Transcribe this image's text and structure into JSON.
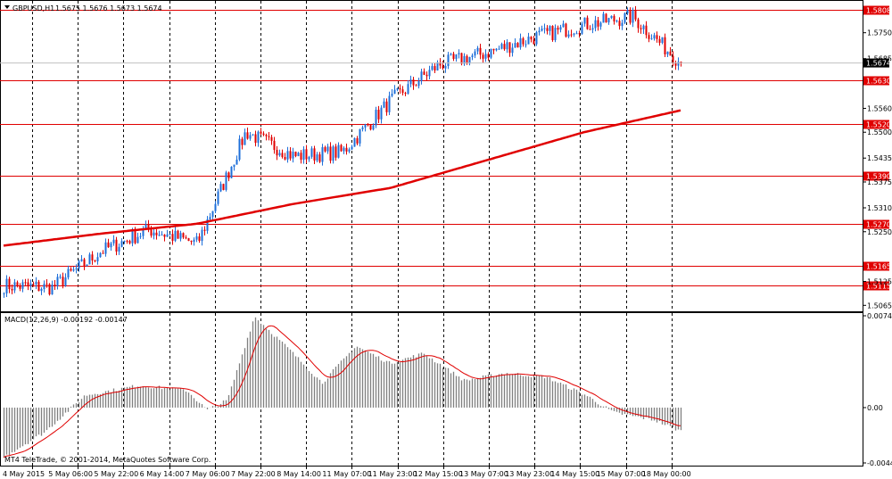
{
  "header": {
    "symbol": "GBPUSD,H1",
    "ohlc": "1.5675 1.5676 1.5673 1.5674"
  },
  "macd_header": {
    "label": "MACD(12,26,9) -0.00192 -0.00147"
  },
  "copyright": "MT4 TeleTrade, © 2001-2014, MetaQuotes Software Corp.",
  "colors": {
    "up_candle": "#1e6fd9",
    "down_candle": "#e00000",
    "level_line": "#e00000",
    "ma_line": "#e00000",
    "macd_hist": "#808080",
    "signal_line": "#e00000",
    "grid": "#000000"
  },
  "price_axis": {
    "ticks": [
      "1.5750",
      "1.5685",
      "1.5560",
      "1.5500",
      "1.5435",
      "1.5375",
      "1.5310",
      "1.5250",
      "1.5125",
      "1.5065"
    ],
    "current_price": "1.5674",
    "levels": [
      "1.5808",
      "1.5630",
      "1.5520",
      "1.5390",
      "1.5270",
      "1.5165",
      "1.5115"
    ]
  },
  "macd_axis": {
    "ticks": [
      "0.00745",
      "0.00",
      "-0.00449"
    ]
  },
  "time_axis": {
    "labels": [
      "4 May 2015",
      "5 May 06:00",
      "5 May 22:00",
      "6 May 14:00",
      "7 May 06:00",
      "7 May 22:00",
      "8 May 14:00",
      "11 May 07:00",
      "11 May 23:00",
      "12 May 15:00",
      "13 May 07:00",
      "13 May 23:00",
      "14 May 15:00",
      "15 May 07:00",
      "18 May 00:00"
    ]
  },
  "chart_data": {
    "type": "candlestick",
    "symbol": "GBPUSD",
    "timeframe": "H1",
    "price_range": [
      1.505,
      1.583
    ],
    "horizontal_levels": [
      1.5808,
      1.563,
      1.552,
      1.539,
      1.527,
      1.5165,
      1.5115
    ],
    "last_price": 1.5674,
    "price_trend_keypoints": [
      {
        "time": "4 May 2015",
        "close": 1.5115
      },
      {
        "time": "5 May 06:00",
        "close": 1.511
      },
      {
        "time": "5 May 22:00",
        "close": 1.52
      },
      {
        "time": "6 May 14:00",
        "close": 1.5255
      },
      {
        "time": "7 May 06:00",
        "close": 1.522
      },
      {
        "time": "7 May 22:00",
        "close": 1.55
      },
      {
        "time": "8 May 14:00",
        "close": 1.544
      },
      {
        "time": "11 May 07:00",
        "close": 1.545
      },
      {
        "time": "11 May 23:00",
        "close": 1.558
      },
      {
        "time": "12 May 15:00",
        "close": 1.567
      },
      {
        "time": "13 May 07:00",
        "close": 1.57
      },
      {
        "time": "13 May 23:00",
        "close": 1.574
      },
      {
        "time": "14 May 15:00",
        "close": 1.577
      },
      {
        "time": "15 May 07:00",
        "close": 1.579
      },
      {
        "time": "18 May 00:00",
        "close": 1.5674
      }
    ],
    "ma_keypoints": [
      {
        "time": "4 May 2015",
        "value": 1.5215
      },
      {
        "time": "6 May 14:00",
        "value": 1.5245
      },
      {
        "time": "7 May 22:00",
        "value": 1.527
      },
      {
        "time": "11 May 07:00",
        "value": 1.532
      },
      {
        "time": "12 May 15:00",
        "value": 1.536
      },
      {
        "time": "13 May 23:00",
        "value": 1.543
      },
      {
        "time": "15 May 07:00",
        "value": 1.55
      },
      {
        "time": "18 May 00:00",
        "value": 1.5555
      }
    ],
    "macd": {
      "params": "12,26,9",
      "main": -0.00192,
      "signal": -0.00147,
      "range": [
        -0.00449,
        0.00745
      ]
    }
  }
}
